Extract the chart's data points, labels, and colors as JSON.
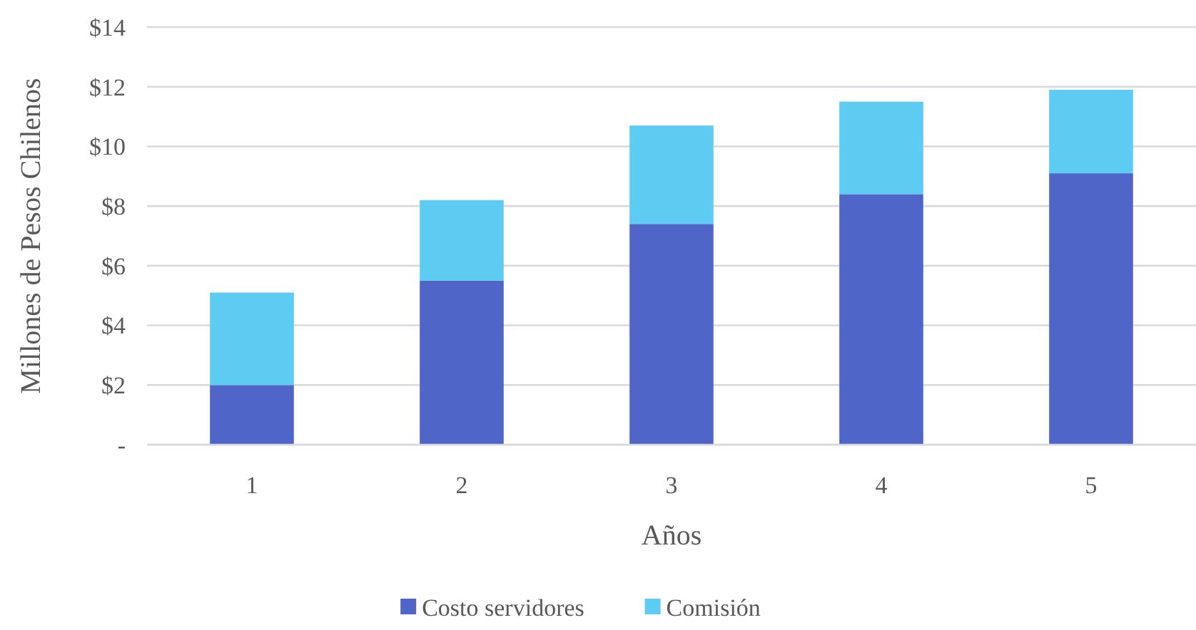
{
  "chart_data": {
    "type": "bar",
    "stacked": true,
    "xlabel": "Años",
    "ylabel": "Millones de Pesos Chilenos",
    "categories": [
      "1",
      "2",
      "3",
      "4",
      "5"
    ],
    "series": [
      {
        "name": "Costo servidores",
        "color": "#4f66c8",
        "values": [
          2.0,
          5.5,
          7.4,
          8.4,
          9.1
        ]
      },
      {
        "name": "Comisión",
        "color": "#5ecbf2",
        "values": [
          3.1,
          2.7,
          3.3,
          3.1,
          2.8
        ]
      }
    ],
    "ylim": [
      0,
      14
    ],
    "yticks": [
      {
        "value": 0,
        "label": "-"
      },
      {
        "value": 2,
        "label": "$2"
      },
      {
        "value": 4,
        "label": "$4"
      },
      {
        "value": 6,
        "label": "$6"
      },
      {
        "value": 8,
        "label": "$8"
      },
      {
        "value": 10,
        "label": "$10"
      },
      {
        "value": 12,
        "label": "$12"
      },
      {
        "value": 14,
        "label": "$14"
      }
    ],
    "grid": "y",
    "legend": "bottom"
  }
}
